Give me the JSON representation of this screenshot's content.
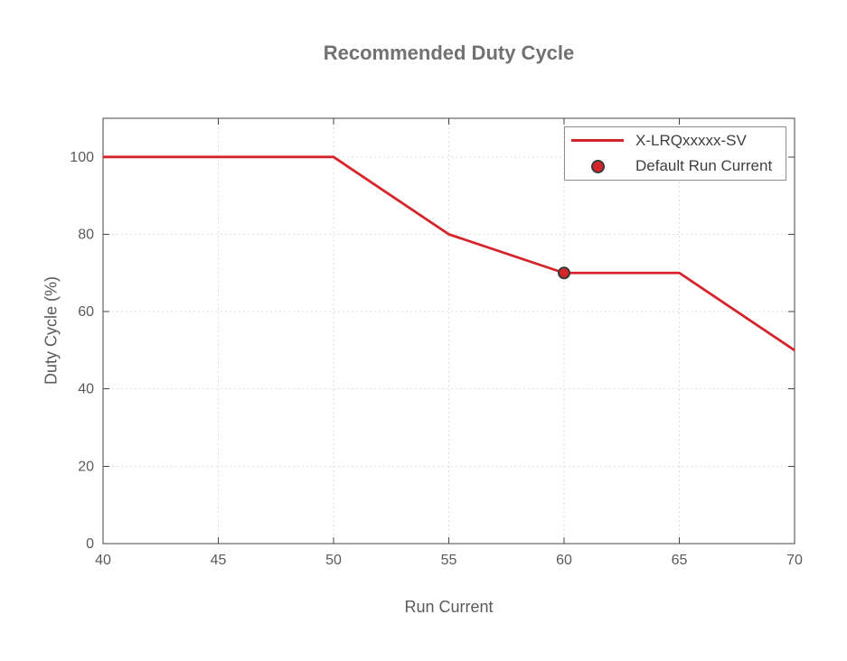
{
  "chart_data": {
    "type": "line",
    "title": "Recommended Duty Cycle",
    "xlabel": "Run Current",
    "ylabel": "Duty Cycle (%)",
    "xlim": [
      40,
      70
    ],
    "ylim": [
      0,
      110
    ],
    "xticks": [
      40,
      45,
      50,
      55,
      60,
      65,
      70
    ],
    "yticks": [
      0,
      20,
      40,
      60,
      80,
      100
    ],
    "grid": true,
    "grid_style": "dashed",
    "legend_position": "top-right",
    "series": [
      {
        "name": "X-LRQxxxxx-SV",
        "type": "line",
        "color": "#d5252b",
        "line_width": 2.8,
        "x": [
          40,
          45,
          50,
          55,
          60,
          65,
          70
        ],
        "y": [
          100,
          100,
          100,
          80,
          70,
          70,
          50
        ]
      },
      {
        "name": "Default Run Current",
        "type": "scatter",
        "color": "#d5252b",
        "edge_color": "#3a3a3a",
        "marker": "circle",
        "x": [
          60
        ],
        "y": [
          70
        ]
      }
    ],
    "colors": {
      "background": "#ffffff",
      "line": "#d5252b",
      "marker_fill": "#d5252b",
      "marker_edge": "#3a3a3a",
      "axis": "#454545",
      "grid": "#dcdde6",
      "tick_label": "#5a5a5a",
      "axis_label": "#5a5a5a",
      "title": "#717171",
      "legend_border": "#8f8f8f",
      "legend_text": "#3f3f3f"
    }
  }
}
